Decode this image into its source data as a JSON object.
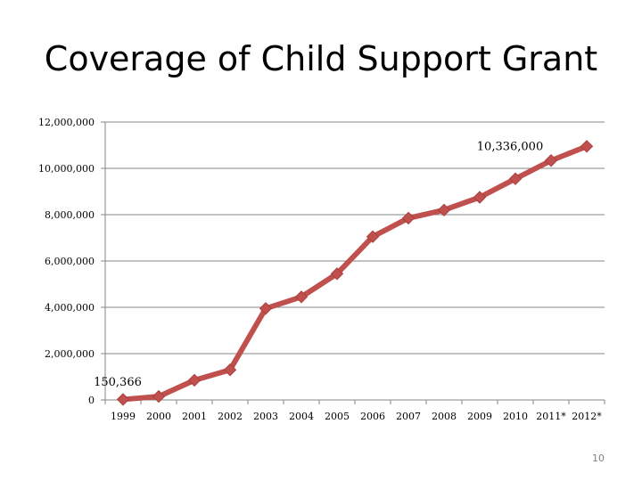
{
  "slide": {
    "title": "Coverage of Child Support Grant",
    "page_number": "10"
  },
  "chart_data": {
    "type": "line",
    "title": "Coverage of Child Support Grant",
    "xlabel": "",
    "ylabel": "",
    "categories": [
      "1999",
      "2000",
      "2001",
      "2002",
      "2003",
      "2004",
      "2005",
      "2006",
      "2007",
      "2008",
      "2009",
      "2010",
      "2011*",
      "2012*"
    ],
    "series": [
      {
        "values": [
          21997,
          150366,
          850000,
          1300000,
          3950000,
          4450000,
          5450000,
          7050000,
          7850000,
          8200000,
          8750000,
          9550000,
          10336000,
          10950000
        ],
        "color": "#c0504d",
        "marker": "diamond"
      }
    ],
    "ylim": [
      0,
      12000000
    ],
    "yticks": [
      "0",
      "2,000,000",
      "4,000,000",
      "6,000,000",
      "8,000,000",
      "10,000,000",
      "12,000,000"
    ],
    "grid": true,
    "legend": "none",
    "annotations": [
      {
        "text": "150,366",
        "category": "2000"
      },
      {
        "text": "10,336,000",
        "category": "2011*"
      }
    ]
  }
}
